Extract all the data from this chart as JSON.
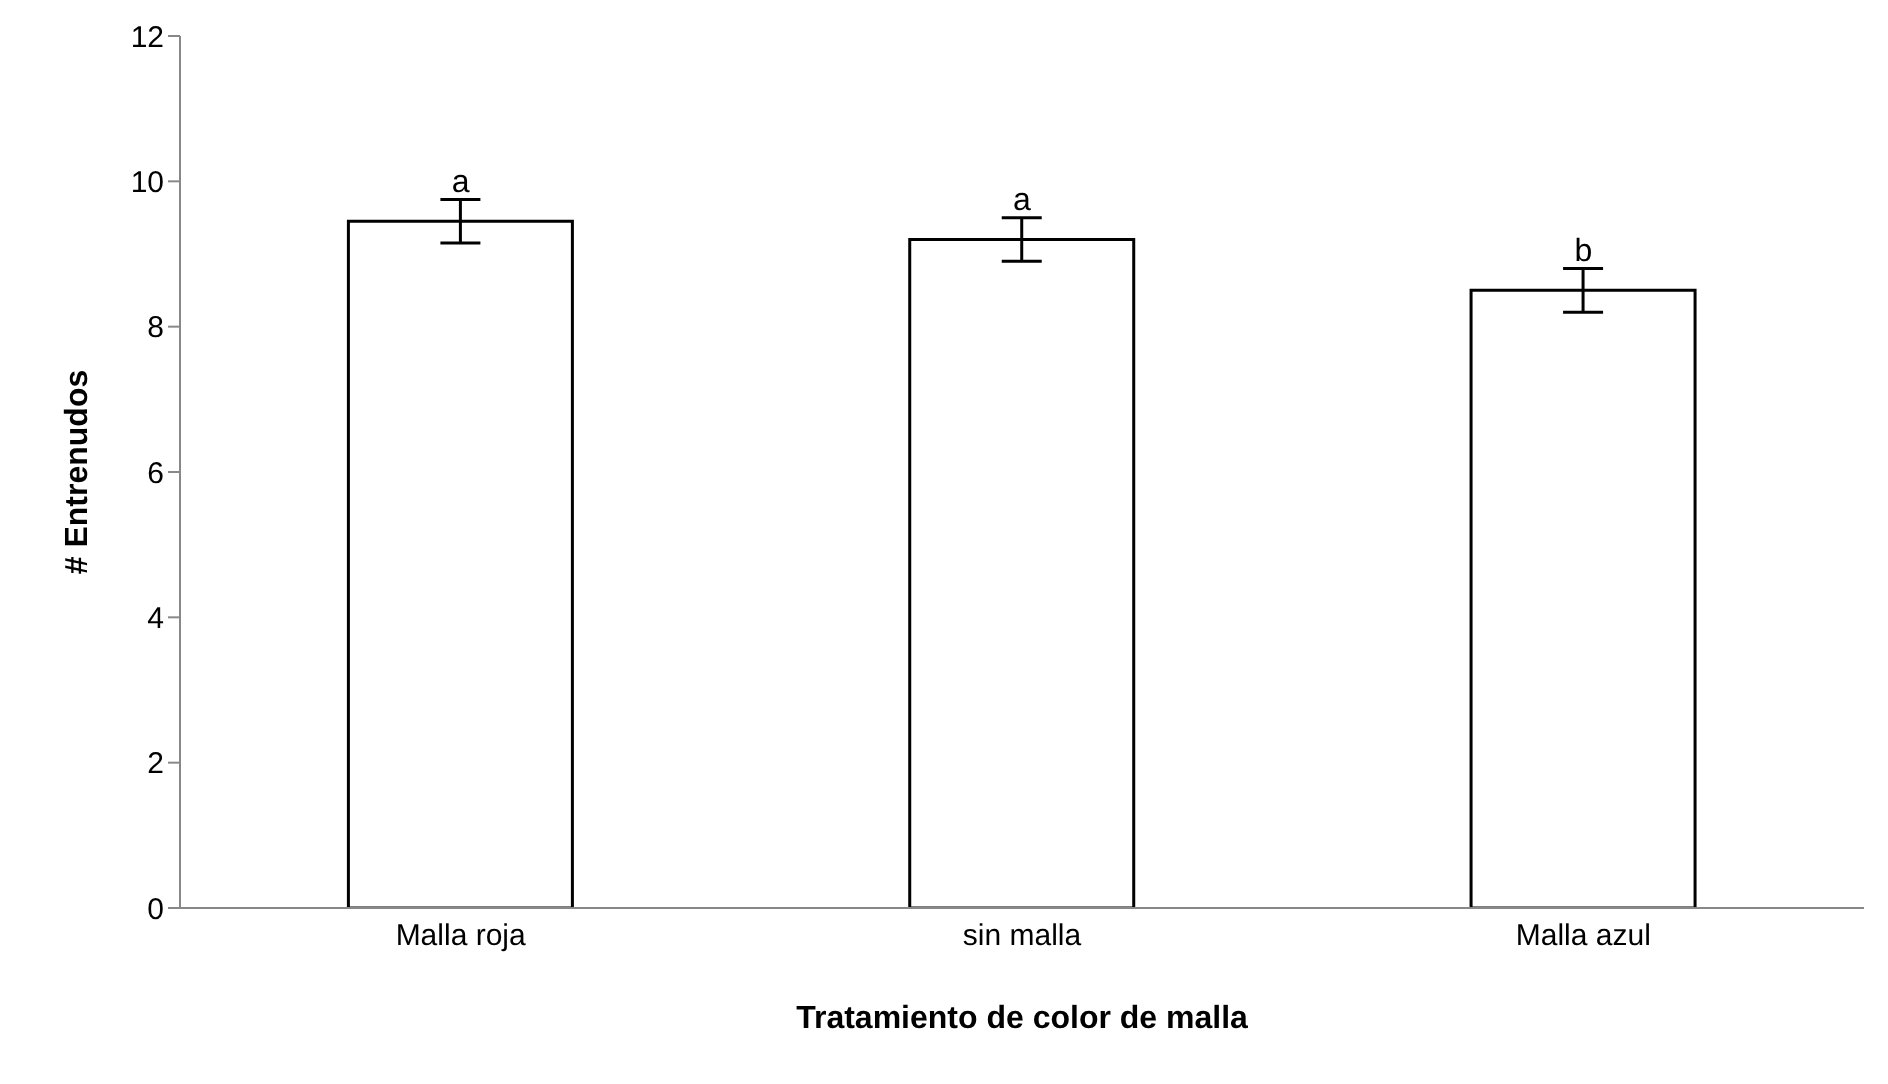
{
  "chart_data": {
    "type": "bar",
    "xlabel": "Tratamiento de color de malla",
    "ylabel": "# Entrenudos",
    "categories": [
      "Malla roja",
      "sin malla",
      "Malla azul"
    ],
    "values": [
      9.45,
      9.2,
      8.5
    ],
    "errors": [
      0.3,
      0.3,
      0.3
    ],
    "color": "#ffffff",
    "ylim": [
      0,
      12
    ],
    "yticks": [
      0,
      2,
      4,
      6,
      8,
      10,
      12
    ],
    "grid": false,
    "legend": false,
    "annotations": [
      {
        "text": "a",
        "x": "Malla roja",
        "y": 9.75
      },
      {
        "text": "a",
        "x": "sin malla",
        "y": 9.5
      },
      {
        "text": "b",
        "x": "Malla azul",
        "y": 8.8
      }
    ]
  }
}
